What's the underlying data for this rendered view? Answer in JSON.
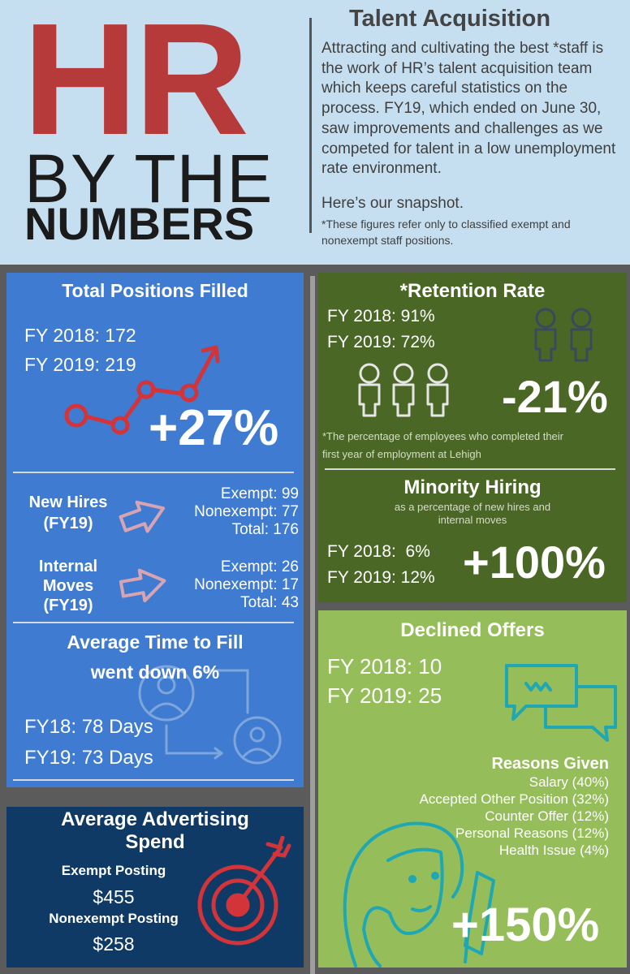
{
  "header": {
    "hr": "HR",
    "by_the": "BY THE",
    "numbers": "NUMBERS",
    "title": "Talent Acquisition",
    "body": "Attracting and cultivating the best *staff is the work of HR’s talent acquisition team which keeps careful statistics on the process. FY19, which ended on June 30, saw improvements and challenges as we competed for talent in a low unemployment rate environment.",
    "snapshot": "Here’s our snapshot.",
    "note": "*These figures refer only to classified exempt and nonexempt staff positions."
  },
  "positions": {
    "title": "Total Positions Filled",
    "fy2018": "FY 2018: 172",
    "fy2019": "FY 2019: 219",
    "change": "+27%"
  },
  "new_hires": {
    "label_1": "New Hires",
    "label_2": "(FY19)",
    "exempt": "Exempt: 99",
    "nonexempt": "Nonexempt: 77",
    "total": "Total: 176"
  },
  "internal_moves": {
    "label_1": "Internal",
    "label_2": "Moves",
    "label_3": "(FY19)",
    "exempt": "Exempt: 26",
    "nonexempt": "Nonexempt: 17",
    "total": "Total: 43"
  },
  "time_to_fill": {
    "title_1": "Average Time to Fill",
    "title_2": "went down 6%",
    "fy18": "FY18: 78 Days",
    "fy19": "FY19: 73 Days"
  },
  "advertising": {
    "title_1": "Average Advertising",
    "title_2": "Spend",
    "exempt_label": "Exempt Posting",
    "exempt_value": "$455",
    "nonexempt_label": "Nonexempt Posting",
    "nonexempt_value": "$258"
  },
  "retention": {
    "title": "*Retention Rate",
    "fy2018": "FY 2018: 91%",
    "fy2019": "FY 2019: 72%",
    "change": "-21%",
    "note_1": "*The percentage of employees who completed their",
    "note_2": "first year of employment at Lehigh"
  },
  "minority": {
    "title": "Minority Hiring",
    "sub_1": "as a percentage of new hires and",
    "sub_2": "internal moves",
    "fy2018": "FY 2018:  6%",
    "fy2019": "FY 2019: 12%",
    "change": "+100%"
  },
  "declined": {
    "title": "Declined Offers",
    "fy2018": "FY 2018: 10",
    "fy2019": "FY 2019: 25",
    "reasons_title": "Reasons Given",
    "reasons": [
      "Salary (40%)",
      "Accepted Other Position (32%)",
      "Counter Offer (12%)",
      "Personal Reasons (12%)",
      "Health Issue (4%)"
    ],
    "change": "+150%"
  },
  "colors": {
    "header_bg": "#c6dff0",
    "hr_red": "#b63a3a",
    "blue_panel": "#3f7bd0",
    "navy_panel": "#0f3a66",
    "olive_panel": "#4a6726",
    "green_panel": "#95bd5a",
    "icon_red": "#d2343a",
    "icon_pink": "#d8a4b4",
    "icon_teal": "#1fa8b4"
  }
}
